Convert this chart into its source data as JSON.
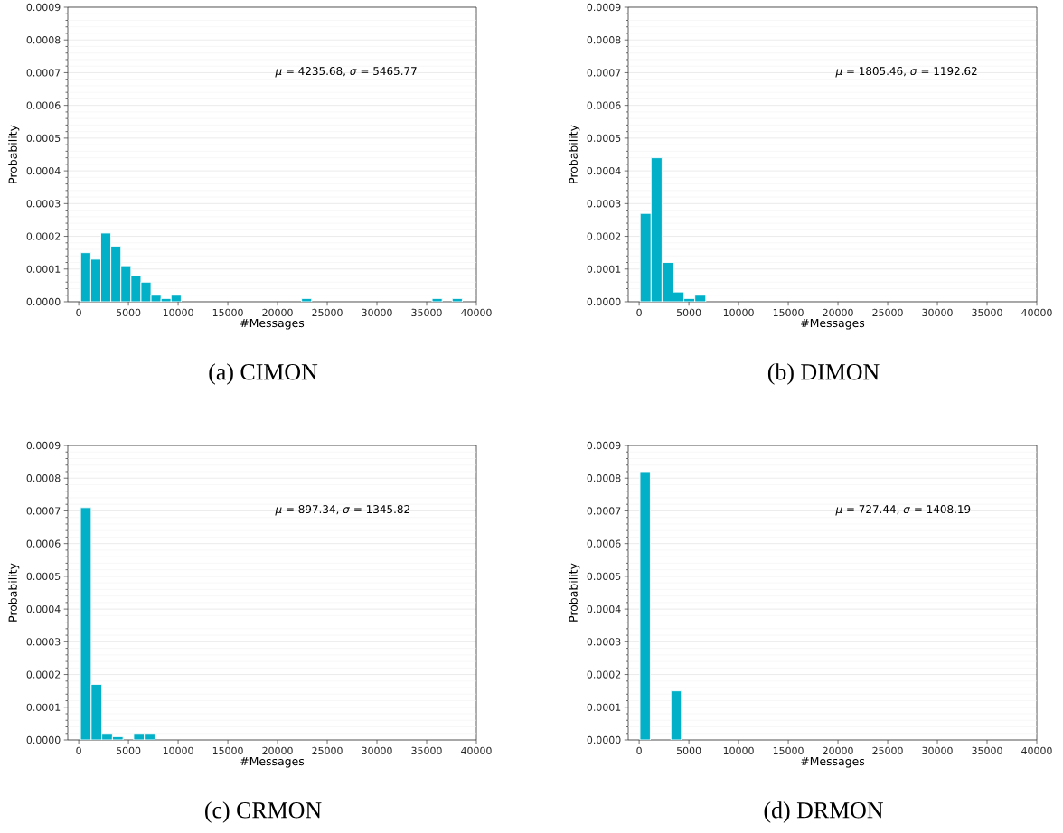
{
  "chart_data": [
    {
      "type": "histogram",
      "title": "(a) CIMON",
      "xlabel": "#Messages",
      "ylabel": "Probability",
      "color": "#02b0c8",
      "grid": "y",
      "annotations": [
        "*μ* = 4235.68,  *σ* = 5465.77"
      ],
      "bins": [
        200,
        1210,
        2220,
        3230,
        4240,
        5250,
        6260,
        7270,
        8280,
        9290,
        10300,
        11310,
        12320,
        13330,
        14340,
        15350,
        16360,
        17370,
        18380,
        19390,
        20400,
        21410,
        22420,
        23430,
        24440,
        25450,
        26460,
        27470,
        28480,
        29490,
        30500,
        31510,
        32520,
        33530,
        34540,
        35550,
        36560,
        37570,
        38580
      ],
      "values": [
        0.00015,
        0.00013,
        0.00021,
        0.00017,
        0.00011,
        8e-05,
        6e-05,
        2e-05,
        1e-05,
        2e-05,
        0,
        0,
        0,
        0,
        0,
        0,
        0,
        0,
        0,
        0,
        0,
        0,
        1e-05,
        0,
        0,
        0,
        0,
        0,
        0,
        0,
        0,
        0,
        0,
        0,
        0,
        1e-05,
        0,
        1e-05
      ],
      "xlim": [
        -1100,
        40000
      ],
      "xticks": [
        0,
        5000,
        10000,
        15000,
        20000,
        25000,
        30000,
        35000,
        40000
      ],
      "ylim": [
        0,
        0.0009
      ],
      "yticks": [
        {
          "value": 0,
          "label": "0.0000"
        },
        {
          "value": 2e-05,
          "label": null
        },
        {
          "value": 4e-05,
          "label": null
        },
        {
          "value": 6e-05,
          "label": null
        },
        {
          "value": 8e-05,
          "label": null
        },
        {
          "value": 0.0001,
          "label": "0.0001"
        },
        {
          "value": 0.00012,
          "label": null
        },
        {
          "value": 0.00014,
          "label": null
        },
        {
          "value": 0.00016,
          "label": null
        },
        {
          "value": 0.00018,
          "label": null
        },
        {
          "value": 0.0002,
          "label": "0.0002"
        },
        {
          "value": 0.00022,
          "label": null
        },
        {
          "value": 0.00024,
          "label": null
        },
        {
          "value": 0.00026,
          "label": null
        },
        {
          "value": 0.00028,
          "label": null
        },
        {
          "value": 0.0003,
          "label": "0.0003"
        },
        {
          "value": 0.00032,
          "label": null
        },
        {
          "value": 0.00034,
          "label": null
        },
        {
          "value": 0.00036,
          "label": null
        },
        {
          "value": 0.00038,
          "label": null
        },
        {
          "value": 0.0004,
          "label": "0.0004"
        },
        {
          "value": 0.00042,
          "label": null
        },
        {
          "value": 0.00044,
          "label": null
        },
        {
          "value": 0.00046,
          "label": null
        },
        {
          "value": 0.00048,
          "label": null
        },
        {
          "value": 0.0005,
          "label": "0.0005"
        },
        {
          "value": 0.00052,
          "label": null
        },
        {
          "value": 0.00054,
          "label": null
        },
        {
          "value": 0.00056,
          "label": null
        },
        {
          "value": 0.00058,
          "label": null
        },
        {
          "value": 0.0006,
          "label": "0.0006"
        },
        {
          "value": 0.00062,
          "label": null
        },
        {
          "value": 0.00064,
          "label": null
        },
        {
          "value": 0.00066,
          "label": null
        },
        {
          "value": 0.00068,
          "label": null
        },
        {
          "value": 0.0007,
          "label": "0.0007"
        },
        {
          "value": 0.00072,
          "label": null
        },
        {
          "value": 0.00074,
          "label": null
        },
        {
          "value": 0.00076,
          "label": null
        },
        {
          "value": 0.00078,
          "label": null
        },
        {
          "value": 0.0008,
          "label": "0.0008"
        },
        {
          "value": 0.00082,
          "label": null
        },
        {
          "value": 0.00084,
          "label": null
        },
        {
          "value": 0.00086,
          "label": null
        },
        {
          "value": 0.00088,
          "label": null
        },
        {
          "value": 0.0009,
          "label": "0.0009"
        }
      ]
    },
    {
      "type": "histogram",
      "title": "(b) DIMON",
      "xlabel": "#Messages",
      "ylabel": "Probability",
      "color": "#02b0c8",
      "grid": "y",
      "annotations": [
        "*μ* = 1805.46,  *σ* = 1192.62"
      ],
      "bins": [
        100,
        1200,
        2300,
        3400,
        4500,
        5600,
        6700
      ],
      "values": [
        0.00027,
        0.00044,
        0.00012,
        3e-05,
        1e-05,
        2e-05
      ],
      "xlim": [
        -1100,
        40000
      ],
      "xticks": [
        0,
        5000,
        10000,
        15000,
        20000,
        25000,
        30000,
        35000,
        40000
      ],
      "ylim": [
        0,
        0.0009
      ],
      "yticks": [
        {
          "value": 0,
          "label": "0.0000"
        },
        {
          "value": 2e-05,
          "label": null
        },
        {
          "value": 4e-05,
          "label": null
        },
        {
          "value": 6e-05,
          "label": null
        },
        {
          "value": 8e-05,
          "label": null
        },
        {
          "value": 0.0001,
          "label": "0.0001"
        },
        {
          "value": 0.00012,
          "label": null
        },
        {
          "value": 0.00014,
          "label": null
        },
        {
          "value": 0.00016,
          "label": null
        },
        {
          "value": 0.00018,
          "label": null
        },
        {
          "value": 0.0002,
          "label": "0.0002"
        },
        {
          "value": 0.00022,
          "label": null
        },
        {
          "value": 0.00024,
          "label": null
        },
        {
          "value": 0.00026,
          "label": null
        },
        {
          "value": 0.00028,
          "label": null
        },
        {
          "value": 0.0003,
          "label": "0.0003"
        },
        {
          "value": 0.00032,
          "label": null
        },
        {
          "value": 0.00034,
          "label": null
        },
        {
          "value": 0.00036,
          "label": null
        },
        {
          "value": 0.00038,
          "label": null
        },
        {
          "value": 0.0004,
          "label": "0.0004"
        },
        {
          "value": 0.00042,
          "label": null
        },
        {
          "value": 0.00044,
          "label": null
        },
        {
          "value": 0.00046,
          "label": null
        },
        {
          "value": 0.00048,
          "label": null
        },
        {
          "value": 0.0005,
          "label": "0.0005"
        },
        {
          "value": 0.00052,
          "label": null
        },
        {
          "value": 0.00054,
          "label": null
        },
        {
          "value": 0.00056,
          "label": null
        },
        {
          "value": 0.00058,
          "label": null
        },
        {
          "value": 0.0006,
          "label": "0.0006"
        },
        {
          "value": 0.00062,
          "label": null
        },
        {
          "value": 0.00064,
          "label": null
        },
        {
          "value": 0.00066,
          "label": null
        },
        {
          "value": 0.00068,
          "label": null
        },
        {
          "value": 0.0007,
          "label": "0.0007"
        },
        {
          "value": 0.00072,
          "label": null
        },
        {
          "value": 0.00074,
          "label": null
        },
        {
          "value": 0.00076,
          "label": null
        },
        {
          "value": 0.00078,
          "label": null
        },
        {
          "value": 0.0008,
          "label": "0.0008"
        },
        {
          "value": 0.00082,
          "label": null
        },
        {
          "value": 0.00084,
          "label": null
        },
        {
          "value": 0.00086,
          "label": null
        },
        {
          "value": 0.00088,
          "label": null
        },
        {
          "value": 0.0009,
          "label": "0.0009"
        }
      ]
    },
    {
      "type": "histogram",
      "title": "(c) CRMON",
      "xlabel": "#Messages",
      "ylabel": "Probability",
      "color": "#02b0c8",
      "grid": "y",
      "annotations": [
        "*μ* = 897.34,  *σ* = 1345.82"
      ],
      "bins": [
        180,
        1250,
        2320,
        3390,
        4460,
        5530,
        6600,
        7670
      ],
      "values": [
        0.00071,
        0.00017,
        2e-05,
        1e-05,
        0,
        2e-05,
        2e-05
      ],
      "xlim": [
        -1100,
        40000
      ],
      "xticks": [
        0,
        5000,
        10000,
        15000,
        20000,
        25000,
        30000,
        35000,
        40000
      ],
      "ylim": [
        0,
        0.0009
      ],
      "yticks": [
        {
          "value": 0,
          "label": "0.0000"
        },
        {
          "value": 2e-05,
          "label": null
        },
        {
          "value": 4e-05,
          "label": null
        },
        {
          "value": 6e-05,
          "label": null
        },
        {
          "value": 8e-05,
          "label": null
        },
        {
          "value": 0.0001,
          "label": "0.0001"
        },
        {
          "value": 0.00012,
          "label": null
        },
        {
          "value": 0.00014,
          "label": null
        },
        {
          "value": 0.00016,
          "label": null
        },
        {
          "value": 0.00018,
          "label": null
        },
        {
          "value": 0.0002,
          "label": "0.0002"
        },
        {
          "value": 0.00022,
          "label": null
        },
        {
          "value": 0.00024,
          "label": null
        },
        {
          "value": 0.00026,
          "label": null
        },
        {
          "value": 0.00028,
          "label": null
        },
        {
          "value": 0.0003,
          "label": "0.0003"
        },
        {
          "value": 0.00032,
          "label": null
        },
        {
          "value": 0.00034,
          "label": null
        },
        {
          "value": 0.00036,
          "label": null
        },
        {
          "value": 0.00038,
          "label": null
        },
        {
          "value": 0.0004,
          "label": "0.0004"
        },
        {
          "value": 0.00042,
          "label": null
        },
        {
          "value": 0.00044,
          "label": null
        },
        {
          "value": 0.00046,
          "label": null
        },
        {
          "value": 0.00048,
          "label": null
        },
        {
          "value": 0.0005,
          "label": "0.0005"
        },
        {
          "value": 0.00052,
          "label": null
        },
        {
          "value": 0.00054,
          "label": null
        },
        {
          "value": 0.00056,
          "label": null
        },
        {
          "value": 0.00058,
          "label": null
        },
        {
          "value": 0.0006,
          "label": "0.0006"
        },
        {
          "value": 0.00062,
          "label": null
        },
        {
          "value": 0.00064,
          "label": null
        },
        {
          "value": 0.00066,
          "label": null
        },
        {
          "value": 0.00068,
          "label": null
        },
        {
          "value": 0.0007,
          "label": "0.0007"
        },
        {
          "value": 0.00072,
          "label": null
        },
        {
          "value": 0.00074,
          "label": null
        },
        {
          "value": 0.00076,
          "label": null
        },
        {
          "value": 0.00078,
          "label": null
        },
        {
          "value": 0.0008,
          "label": "0.0008"
        },
        {
          "value": 0.00082,
          "label": null
        },
        {
          "value": 0.00084,
          "label": null
        },
        {
          "value": 0.00086,
          "label": null
        },
        {
          "value": 0.00088,
          "label": null
        },
        {
          "value": 0.0009,
          "label": "0.0009"
        }
      ]
    },
    {
      "type": "histogram",
      "title": "(d) DRMON",
      "xlabel": "#Messages",
      "ylabel": "Probability",
      "color": "#02b0c8",
      "grid": "y",
      "annotations": [
        "*μ* = 727.44,  *σ* = 1408.19"
      ],
      "bins": [
        80,
        1120,
        2160,
        3200,
        4240
      ],
      "values": [
        0.00082,
        0,
        0,
        0.00015
      ],
      "xlim": [
        -1100,
        40000
      ],
      "xticks": [
        0,
        5000,
        10000,
        15000,
        20000,
        25000,
        30000,
        35000,
        40000
      ],
      "ylim": [
        0,
        0.0009
      ],
      "yticks": [
        {
          "value": 0,
          "label": "0.0000"
        },
        {
          "value": 2e-05,
          "label": null
        },
        {
          "value": 4e-05,
          "label": null
        },
        {
          "value": 6e-05,
          "label": null
        },
        {
          "value": 8e-05,
          "label": null
        },
        {
          "value": 0.0001,
          "label": "0.0001"
        },
        {
          "value": 0.00012,
          "label": null
        },
        {
          "value": 0.00014,
          "label": null
        },
        {
          "value": 0.00016,
          "label": null
        },
        {
          "value": 0.00018,
          "label": null
        },
        {
          "value": 0.0002,
          "label": "0.0002"
        },
        {
          "value": 0.00022,
          "label": null
        },
        {
          "value": 0.00024,
          "label": null
        },
        {
          "value": 0.00026,
          "label": null
        },
        {
          "value": 0.00028,
          "label": null
        },
        {
          "value": 0.0003,
          "label": "0.0003"
        },
        {
          "value": 0.00032,
          "label": null
        },
        {
          "value": 0.00034,
          "label": null
        },
        {
          "value": 0.00036,
          "label": null
        },
        {
          "value": 0.00038,
          "label": null
        },
        {
          "value": 0.0004,
          "label": "0.0004"
        },
        {
          "value": 0.00042,
          "label": null
        },
        {
          "value": 0.00044,
          "label": null
        },
        {
          "value": 0.00046,
          "label": null
        },
        {
          "value": 0.00048,
          "label": null
        },
        {
          "value": 0.0005,
          "label": "0.0005"
        },
        {
          "value": 0.00052,
          "label": null
        },
        {
          "value": 0.00054,
          "label": null
        },
        {
          "value": 0.00056,
          "label": null
        },
        {
          "value": 0.00058,
          "label": null
        },
        {
          "value": 0.0006,
          "label": "0.0006"
        },
        {
          "value": 0.00062,
          "label": null
        },
        {
          "value": 0.00064,
          "label": null
        },
        {
          "value": 0.00066,
          "label": null
        },
        {
          "value": 0.00068,
          "label": null
        },
        {
          "value": 0.0007,
          "label": "0.0007"
        },
        {
          "value": 0.00072,
          "label": null
        },
        {
          "value": 0.00074,
          "label": null
        },
        {
          "value": 0.00076,
          "label": null
        },
        {
          "value": 0.00078,
          "label": null
        },
        {
          "value": 0.0008,
          "label": "0.0008"
        },
        {
          "value": 0.00082,
          "label": null
        },
        {
          "value": 0.00084,
          "label": null
        },
        {
          "value": 0.00086,
          "label": null
        },
        {
          "value": 0.00088,
          "label": null
        },
        {
          "value": 0.0009,
          "label": "0.0009"
        }
      ]
    }
  ]
}
